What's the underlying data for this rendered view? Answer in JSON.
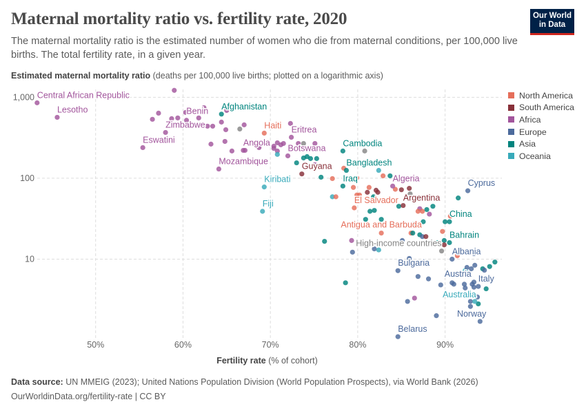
{
  "title": "Maternal mortality ratio vs. fertility rate, 2020",
  "subtitle": "The maternal mortality ratio is the estimated number of women who die from maternal conditions, per 100,000 live births. The total fertility rate, in a given year.",
  "logo": {
    "line1": "Our World",
    "line2": "in Data"
  },
  "footer": {
    "source_label": "Data source:",
    "source": "UN MMEIG (2023); United Nations Population Division (World Population Prospects), via World Bank (2026)",
    "url": "OurWorldinData.org/fertility-rate | CC BY"
  },
  "chart_data": {
    "type": "scatter",
    "title": "Maternal mortality ratio vs. fertility rate, 2020",
    "xlabel_bold": "Fertility rate",
    "xlabel_rest": "(% of cohort)",
    "ylabel_bold": "Estimated maternal mortality ratio",
    "ylabel_rest": "(deaths per 100,000 live births; plotted on a logarithmic axis)",
    "xlim": [
      43,
      96.5
    ],
    "ylim": [
      1,
      1250
    ],
    "yscale": "log",
    "grid": true,
    "legend_position": "right",
    "x_ticks": [
      "50%",
      "60%",
      "70%",
      "80%",
      "90%"
    ],
    "x_tick_values": [
      50,
      60,
      70,
      80,
      90
    ],
    "y_ticks": [
      "1,000",
      "100",
      "10"
    ],
    "y_tick_values": [
      1000,
      100,
      10
    ],
    "colors": {
      "North America": "#e56e5a",
      "South America": "#883039",
      "Africa": "#a2559c",
      "Europe": "#4c6a9c",
      "Asia": "#00847e",
      "Oceania": "#38aaba",
      "Other": "#858585"
    },
    "legend": [
      "North America",
      "South America",
      "Africa",
      "Europe",
      "Asia",
      "Oceania"
    ],
    "points": [
      {
        "x": 43.3,
        "y": 855,
        "region": "Africa",
        "label": "Central African Republic"
      },
      {
        "x": 45.6,
        "y": 566,
        "region": "Africa",
        "label": "Lesotho"
      },
      {
        "x": 55.4,
        "y": 239,
        "region": "Africa",
        "label": "Eswatini"
      },
      {
        "x": 58.0,
        "y": 368,
        "region": "Africa",
        "label": "Zimbabwe"
      },
      {
        "x": 60.3,
        "y": 650,
        "region": "Africa",
        "label": "Benin"
      },
      {
        "x": 64.4,
        "y": 620,
        "region": "Asia",
        "label": "Afghanistan"
      },
      {
        "x": 64.1,
        "y": 130,
        "region": "Africa",
        "label": "Mozambique"
      },
      {
        "x": 66.9,
        "y": 221,
        "region": "Africa",
        "label": "Angola"
      },
      {
        "x": 69.3,
        "y": 361,
        "region": "North America",
        "label": "Haiti"
      },
      {
        "x": 72.4,
        "y": 321,
        "region": "Africa",
        "label": "Eritrea"
      },
      {
        "x": 72.0,
        "y": 189,
        "region": "Africa",
        "label": "Botswana"
      },
      {
        "x": 69.3,
        "y": 78,
        "region": "Oceania",
        "label": "Kiribati"
      },
      {
        "x": 69.1,
        "y": 39,
        "region": "Oceania",
        "label": "Fiji"
      },
      {
        "x": 73.6,
        "y": 113,
        "region": "South America",
        "label": "Guyana"
      },
      {
        "x": 78.3,
        "y": 217,
        "region": "Asia",
        "label": "Cambodia"
      },
      {
        "x": 78.7,
        "y": 125,
        "region": "Asia",
        "label": "Bangladesh"
      },
      {
        "x": 78.3,
        "y": 80,
        "region": "Asia",
        "label": "Iraq"
      },
      {
        "x": 84.0,
        "y": 80,
        "region": "Africa",
        "label": "Algeria"
      },
      {
        "x": 79.6,
        "y": 43,
        "region": "North America",
        "label": "El Salvador"
      },
      {
        "x": 85.2,
        "y": 46,
        "region": "South America",
        "label": "Argentina"
      },
      {
        "x": 92.6,
        "y": 70,
        "region": "Europe",
        "label": "Cyprus"
      },
      {
        "x": 90.5,
        "y": 29,
        "region": "Asia",
        "label": "China"
      },
      {
        "x": 90.5,
        "y": 16,
        "region": "Asia",
        "label": "Bahrain"
      },
      {
        "x": 82.7,
        "y": 21,
        "region": "North America",
        "label": "Antigua and Barbuda"
      },
      {
        "x": 89.6,
        "y": 12.6,
        "region": "Other",
        "label": "High-income countries"
      },
      {
        "x": 90.8,
        "y": 10,
        "region": "Europe",
        "label": "Albania"
      },
      {
        "x": 84.6,
        "y": 7.2,
        "region": "Europe",
        "label": "Bulgaria"
      },
      {
        "x": 90.8,
        "y": 5.1,
        "region": "Europe",
        "label": "Austria"
      },
      {
        "x": 93.8,
        "y": 4.6,
        "region": "Europe",
        "label": "Italy"
      },
      {
        "x": 93.4,
        "y": 3.0,
        "region": "Oceania",
        "label": "Australia"
      },
      {
        "x": 94.0,
        "y": 1.7,
        "region": "Europe",
        "label": "Norway"
      },
      {
        "x": 84.6,
        "y": 1.1,
        "region": "Europe",
        "label": "Belarus"
      },
      {
        "x": 59.0,
        "y": 1220,
        "region": "Africa"
      },
      {
        "x": 57.2,
        "y": 637,
        "region": "Africa"
      },
      {
        "x": 56.5,
        "y": 535,
        "region": "Africa"
      },
      {
        "x": 58.7,
        "y": 545,
        "region": "Africa"
      },
      {
        "x": 59.4,
        "y": 556,
        "region": "Africa"
      },
      {
        "x": 60.4,
        "y": 520,
        "region": "Africa"
      },
      {
        "x": 62.4,
        "y": 745,
        "region": "Africa"
      },
      {
        "x": 61.8,
        "y": 556,
        "region": "Africa"
      },
      {
        "x": 62.8,
        "y": 440,
        "region": "Africa"
      },
      {
        "x": 63.4,
        "y": 440,
        "region": "Africa"
      },
      {
        "x": 64.4,
        "y": 494,
        "region": "Africa"
      },
      {
        "x": 65.0,
        "y": 688,
        "region": "Africa"
      },
      {
        "x": 64.9,
        "y": 398,
        "region": "Africa"
      },
      {
        "x": 67.0,
        "y": 457,
        "region": "Africa"
      },
      {
        "x": 63.2,
        "y": 264,
        "region": "Africa"
      },
      {
        "x": 64.8,
        "y": 285,
        "region": "Africa"
      },
      {
        "x": 65.6,
        "y": 217,
        "region": "Africa"
      },
      {
        "x": 67.1,
        "y": 221,
        "region": "Africa"
      },
      {
        "x": 68.7,
        "y": 239,
        "region": "Africa"
      },
      {
        "x": 70.4,
        "y": 234,
        "region": "Africa"
      },
      {
        "x": 71.5,
        "y": 269,
        "region": "Africa"
      },
      {
        "x": 66.5,
        "y": 406,
        "region": "Other"
      },
      {
        "x": 66.7,
        "y": 165,
        "region": "South America"
      },
      {
        "x": 72.3,
        "y": 475,
        "region": "Africa"
      },
      {
        "x": 70.8,
        "y": 274,
        "region": "Africa"
      },
      {
        "x": 71.2,
        "y": 259,
        "region": "Africa"
      },
      {
        "x": 70.4,
        "y": 249,
        "region": "Africa"
      },
      {
        "x": 73.2,
        "y": 269,
        "region": "Africa"
      },
      {
        "x": 73.8,
        "y": 269,
        "region": "Other"
      },
      {
        "x": 75.1,
        "y": 269,
        "region": "Africa"
      },
      {
        "x": 70.8,
        "y": 217,
        "region": "Africa"
      },
      {
        "x": 70.8,
        "y": 197,
        "region": "Oceania"
      },
      {
        "x": 73.0,
        "y": 155,
        "region": "Asia"
      },
      {
        "x": 73.8,
        "y": 178,
        "region": "Asia"
      },
      {
        "x": 74.2,
        "y": 185,
        "region": "Asia"
      },
      {
        "x": 74.6,
        "y": 175,
        "region": "Asia"
      },
      {
        "x": 75.3,
        "y": 175,
        "region": "Asia"
      },
      {
        "x": 75.1,
        "y": 147,
        "region": "Africa"
      },
      {
        "x": 75.8,
        "y": 103,
        "region": "Asia"
      },
      {
        "x": 77.1,
        "y": 99,
        "region": "North America"
      },
      {
        "x": 78.4,
        "y": 133,
        "region": "North America"
      },
      {
        "x": 79.9,
        "y": 101,
        "region": "North America"
      },
      {
        "x": 82.4,
        "y": 125,
        "region": "Oceania"
      },
      {
        "x": 82.9,
        "y": 107,
        "region": "North America"
      },
      {
        "x": 83.7,
        "y": 107,
        "region": "Asia"
      },
      {
        "x": 82.2,
        "y": 259,
        "region": "South America"
      },
      {
        "x": 80.8,
        "y": 217,
        "region": "Other"
      },
      {
        "x": 79.5,
        "y": 77,
        "region": "North America"
      },
      {
        "x": 79.9,
        "y": 62,
        "region": "North America"
      },
      {
        "x": 81.3,
        "y": 77,
        "region": "North America"
      },
      {
        "x": 81.1,
        "y": 67,
        "region": "South America"
      },
      {
        "x": 82.1,
        "y": 71,
        "region": "South America"
      },
      {
        "x": 82.3,
        "y": 67,
        "region": "South America"
      },
      {
        "x": 80.2,
        "y": 62,
        "region": "North America"
      },
      {
        "x": 81.8,
        "y": 59,
        "region": "Asia"
      },
      {
        "x": 85.0,
        "y": 72,
        "region": "South America"
      },
      {
        "x": 84.3,
        "y": 73,
        "region": "North America"
      },
      {
        "x": 85.9,
        "y": 75,
        "region": "South America"
      },
      {
        "x": 86.0,
        "y": 64,
        "region": "Other"
      },
      {
        "x": 77.1,
        "y": 59,
        "region": "Oceania"
      },
      {
        "x": 77.5,
        "y": 59,
        "region": "North America"
      },
      {
        "x": 81.4,
        "y": 39,
        "region": "Asia"
      },
      {
        "x": 81.9,
        "y": 40,
        "region": "Asia"
      },
      {
        "x": 84.7,
        "y": 45,
        "region": "Asia"
      },
      {
        "x": 88.6,
        "y": 45,
        "region": "Asia"
      },
      {
        "x": 87.9,
        "y": 41,
        "region": "Asia"
      },
      {
        "x": 87.1,
        "y": 42,
        "region": "Africa"
      },
      {
        "x": 86.9,
        "y": 39,
        "region": "North America"
      },
      {
        "x": 87.4,
        "y": 39,
        "region": "North America"
      },
      {
        "x": 88.2,
        "y": 36,
        "region": "Africa"
      },
      {
        "x": 91.5,
        "y": 57,
        "region": "Asia"
      },
      {
        "x": 90.6,
        "y": 34,
        "region": "North America"
      },
      {
        "x": 80.9,
        "y": 31,
        "region": "Asia"
      },
      {
        "x": 82.7,
        "y": 31,
        "region": "Asia"
      },
      {
        "x": 86.4,
        "y": 27,
        "region": "Asia"
      },
      {
        "x": 86.6,
        "y": 27,
        "region": "Asia"
      },
      {
        "x": 87.5,
        "y": 29,
        "region": "Asia"
      },
      {
        "x": 90.0,
        "y": 29,
        "region": "Asia"
      },
      {
        "x": 89.7,
        "y": 22,
        "region": "North America"
      },
      {
        "x": 86.1,
        "y": 21,
        "region": "North America"
      },
      {
        "x": 86.3,
        "y": 21,
        "region": "Asia"
      },
      {
        "x": 87.1,
        "y": 20,
        "region": "Asia"
      },
      {
        "x": 87.4,
        "y": 19,
        "region": "Europe"
      },
      {
        "x": 87.8,
        "y": 19,
        "region": "South America"
      },
      {
        "x": 89.1,
        "y": 16,
        "region": "Asia"
      },
      {
        "x": 89.9,
        "y": 17,
        "region": "Asia"
      },
      {
        "x": 89.9,
        "y": 15,
        "region": "South America"
      },
      {
        "x": 76.2,
        "y": 16.6,
        "region": "Asia"
      },
      {
        "x": 79.3,
        "y": 17,
        "region": "Africa"
      },
      {
        "x": 79.4,
        "y": 12.2,
        "region": "Europe"
      },
      {
        "x": 85.1,
        "y": 17,
        "region": "Europe"
      },
      {
        "x": 81.9,
        "y": 13.4,
        "region": "Europe"
      },
      {
        "x": 82.4,
        "y": 13,
        "region": "Oceania"
      },
      {
        "x": 85.9,
        "y": 10.2,
        "region": "Europe"
      },
      {
        "x": 86.9,
        "y": 6.1,
        "region": "Europe"
      },
      {
        "x": 88.1,
        "y": 5.7,
        "region": "Europe"
      },
      {
        "x": 78.6,
        "y": 5.1,
        "region": "Asia"
      },
      {
        "x": 85.7,
        "y": 3.0,
        "region": "Europe"
      },
      {
        "x": 86.5,
        "y": 3.3,
        "region": "Africa"
      },
      {
        "x": 89.0,
        "y": 2.0,
        "region": "Europe"
      },
      {
        "x": 89.5,
        "y": 4.8,
        "region": "Europe"
      },
      {
        "x": 91.4,
        "y": 11,
        "region": "North America"
      },
      {
        "x": 93.3,
        "y": 11.7,
        "region": "Europe"
      },
      {
        "x": 93.4,
        "y": 8.4,
        "region": "Europe"
      },
      {
        "x": 93.0,
        "y": 7.6,
        "region": "Europe"
      },
      {
        "x": 94.3,
        "y": 7.6,
        "region": "Asia"
      },
      {
        "x": 94.5,
        "y": 7.3,
        "region": "Europe"
      },
      {
        "x": 95.1,
        "y": 8.1,
        "region": "Asia"
      },
      {
        "x": 95.7,
        "y": 9.2,
        "region": "Asia"
      },
      {
        "x": 92.3,
        "y": 7.2,
        "region": "Oceania"
      },
      {
        "x": 92.5,
        "y": 7.9,
        "region": "Europe"
      },
      {
        "x": 91.0,
        "y": 4.9,
        "region": "Europe"
      },
      {
        "x": 92.2,
        "y": 4.9,
        "region": "Europe"
      },
      {
        "x": 92.3,
        "y": 4.4,
        "region": "Europe"
      },
      {
        "x": 93.1,
        "y": 4.9,
        "region": "Europe"
      },
      {
        "x": 93.3,
        "y": 5.2,
        "region": "Europe"
      },
      {
        "x": 93.3,
        "y": 4.5,
        "region": "Europe"
      },
      {
        "x": 94.7,
        "y": 4.3,
        "region": "Asia"
      },
      {
        "x": 93.7,
        "y": 3.4,
        "region": "Europe"
      },
      {
        "x": 93.8,
        "y": 2.8,
        "region": "Asia"
      },
      {
        "x": 92.9,
        "y": 3.0,
        "region": "Europe"
      },
      {
        "x": 92.9,
        "y": 2.6,
        "region": "Europe"
      }
    ]
  }
}
